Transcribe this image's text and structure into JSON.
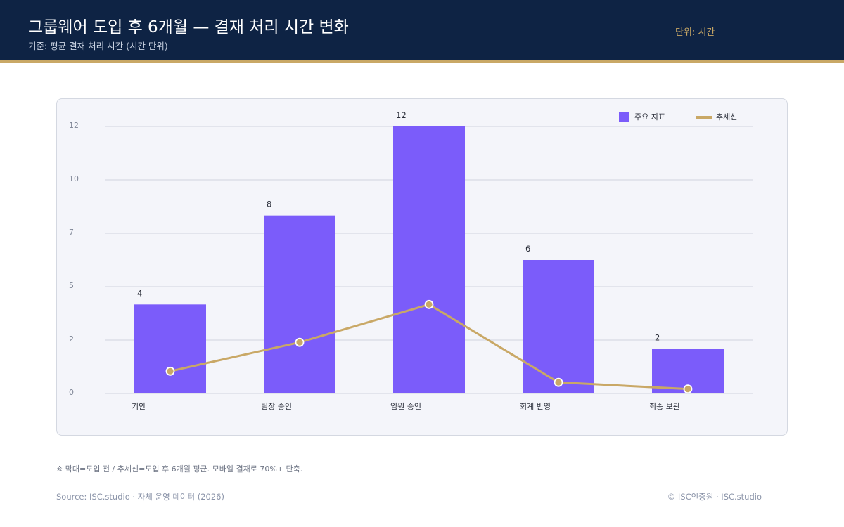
{
  "header": {
    "title": "그룹웨어 도입 후 6개월 — 결재 처리 시간 변화",
    "subtitle": "기준: 평균 결재 처리 시간 (시간 단위)",
    "unit_label": "단위: 시간"
  },
  "footer": {
    "footnote": "※ 막대=도입 전 / 추세선=도입 후 6개월 평균. 모바일 결재로 70%+ 단축.",
    "source": "Source: ISC.studio · 자체 운영 데이터 (2026)",
    "copyright": "© ISC인증원 · ISC.studio"
  },
  "colors": {
    "header_bg": "#0e2344",
    "accent_gold": "#c9a866",
    "bar": "#7b5cfa",
    "line": "#c9a866"
  },
  "chart_data": {
    "type": "bar",
    "categories": [
      "기안",
      "팀장 승인",
      "임원 승인",
      "회계 반영",
      "최종 보관"
    ],
    "series": [
      {
        "name": "주요 지표",
        "type": "bar",
        "values": [
          4,
          8,
          12,
          6,
          2
        ]
      },
      {
        "name": "추세선",
        "type": "line",
        "values": [
          1,
          2.3,
          4,
          0.5,
          0.2
        ]
      }
    ],
    "y_ticks": [
      "0",
      "2",
      "5",
      "7",
      "10",
      "12"
    ],
    "ylim": [
      0,
      12
    ],
    "grid": true,
    "legend": "top-right",
    "data_labels": [
      "4",
      "8",
      "12",
      "6",
      "2"
    ]
  }
}
